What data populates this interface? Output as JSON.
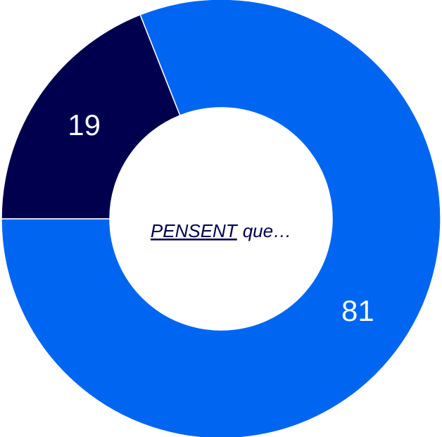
{
  "chart_data": {
    "type": "donut",
    "values": [
      19,
      81
    ],
    "colors": [
      "#00004f",
      "#0066f2"
    ],
    "center_text": {
      "emphasis": "PENSENT",
      "rest": "que…"
    },
    "center_text_color": "#00004f"
  }
}
